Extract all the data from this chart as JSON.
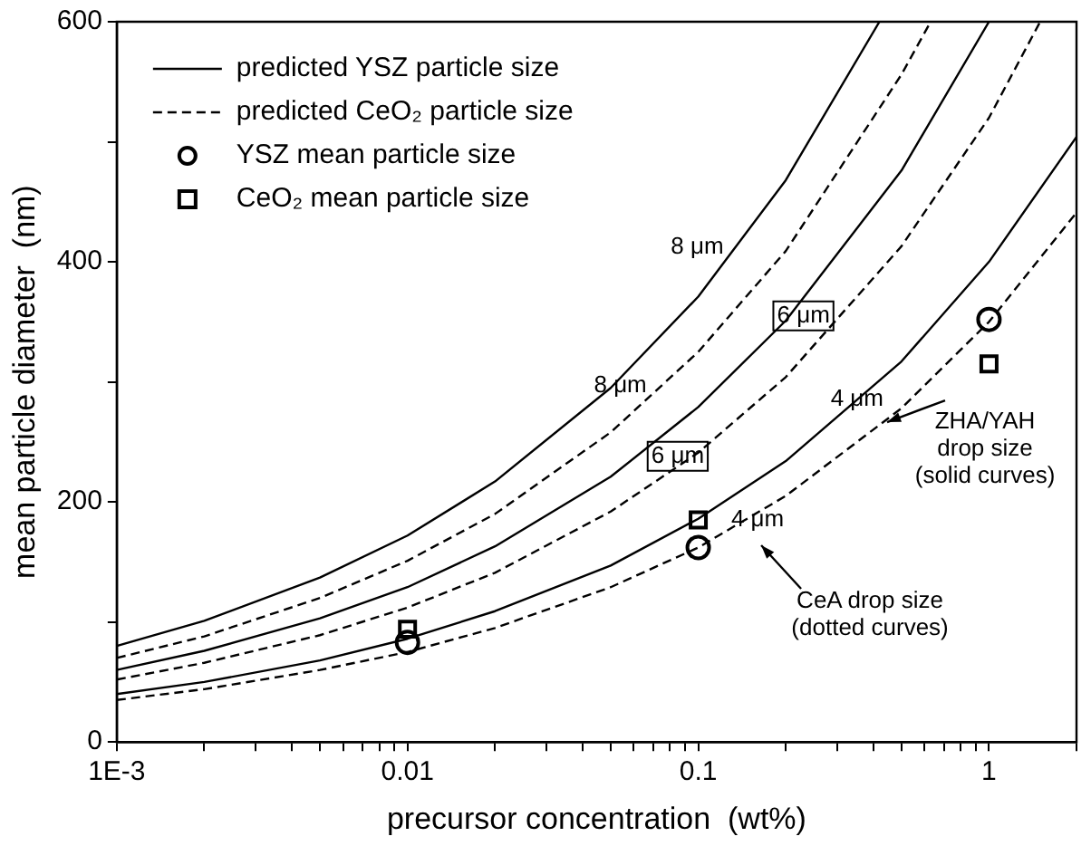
{
  "chart_data": {
    "type": "line",
    "xlabel": "precursor concentration  (wt%)",
    "ylabel": "mean particle diameter  (nm)",
    "log": "x",
    "xlim": [
      0.001,
      2
    ],
    "ylim": [
      0,
      600
    ],
    "xticks": [
      {
        "value": 0.001,
        "label": "1E-3"
      },
      {
        "value": 0.002,
        "label": null
      },
      {
        "value": 0.003,
        "label": null
      },
      {
        "value": 0.004,
        "label": null
      },
      {
        "value": 0.005,
        "label": null
      },
      {
        "value": 0.006,
        "label": null
      },
      {
        "value": 0.007,
        "label": null
      },
      {
        "value": 0.008,
        "label": null
      },
      {
        "value": 0.009,
        "label": null
      },
      0.01,
      {
        "value": 0.02,
        "label": null
      },
      {
        "value": 0.03,
        "label": null
      },
      {
        "value": 0.04,
        "label": null
      },
      {
        "value": 0.05,
        "label": null
      },
      {
        "value": 0.06,
        "label": null
      },
      {
        "value": 0.07,
        "label": null
      },
      {
        "value": 0.08,
        "label": null
      },
      {
        "value": 0.09,
        "label": null
      },
      0.1,
      {
        "value": 0.2,
        "label": null
      },
      {
        "value": 0.3,
        "label": null
      },
      {
        "value": 0.4,
        "label": null
      },
      {
        "value": 0.5,
        "label": null
      },
      {
        "value": 0.6,
        "label": null
      },
      {
        "value": 0.7,
        "label": null
      },
      {
        "value": 0.8,
        "label": null
      },
      {
        "value": 0.9,
        "label": null
      },
      1,
      {
        "value": 2,
        "label": null
      }
    ],
    "yticks": [
      0,
      {
        "value": 100,
        "label": null
      },
      200,
      {
        "value": 300,
        "label": null
      },
      400,
      {
        "value": 500,
        "label": null
      },
      600
    ],
    "grid": false,
    "legend": "top left",
    "series": [
      {
        "name": "predicted YSZ particle size",
        "line_style": "solid",
        "marker": "none",
        "color": "#000000",
        "x": [
          0.001,
          0.002,
          0.005,
          0.01,
          0.02,
          0.05,
          0.1,
          0.2,
          0.42
        ],
        "values": [
          80,
          101,
          137,
          172,
          217,
          295,
          371,
          468,
          600
        ]
      },
      {
        "name": "predicted CeO₂ particle size",
        "line_style": "dashed",
        "marker": "none",
        "color": "#000000",
        "x": [
          0.001,
          0.002,
          0.005,
          0.01,
          0.02,
          0.05,
          0.1,
          0.2,
          0.5,
          0.63
        ],
        "values": [
          70,
          88,
          120,
          151,
          190,
          258,
          325,
          409,
          556,
          600
        ]
      },
      {
        "line_style": "solid",
        "marker": "none",
        "color": "#000000",
        "x": [
          0.001,
          0.002,
          0.005,
          0.01,
          0.02,
          0.05,
          0.1,
          0.2,
          0.5,
          1
        ],
        "values": [
          60,
          76,
          103,
          129,
          163,
          221,
          279,
          351,
          476,
          600
        ]
      },
      {
        "line_style": "dashed",
        "marker": "none",
        "color": "#000000",
        "x": [
          0.001,
          0.002,
          0.005,
          0.01,
          0.02,
          0.05,
          0.1,
          0.2,
          0.5,
          1,
          1.5
        ],
        "values": [
          52,
          66,
          89,
          112,
          141,
          192,
          241,
          304,
          413,
          520,
          600
        ]
      },
      {
        "line_style": "solid",
        "marker": "none",
        "color": "#000000",
        "x": [
          0.001,
          0.002,
          0.005,
          0.01,
          0.02,
          0.05,
          0.1,
          0.2,
          0.5,
          1,
          2
        ],
        "values": [
          40,
          50,
          68,
          86,
          109,
          147,
          186,
          234,
          317,
          400,
          504
        ]
      },
      {
        "line_style": "dashed",
        "marker": "none",
        "color": "#000000",
        "x": [
          0.001,
          0.002,
          0.005,
          0.01,
          0.02,
          0.05,
          0.1,
          0.2,
          0.5,
          1,
          2
        ],
        "values": [
          35,
          44,
          60,
          75,
          95,
          129,
          162,
          205,
          278,
          350,
          441
        ]
      },
      {
        "name": "YSZ mean particle size",
        "type": "scatter",
        "marker": "circle",
        "color": "#000000",
        "x": [
          0.01,
          0.1,
          1
        ],
        "values": [
          83,
          162,
          352
        ]
      },
      {
        "name": "CeO₂ mean particle size",
        "type": "scatter",
        "marker": "square",
        "color": "#000000",
        "x": [
          0.01,
          0.1,
          1
        ],
        "values": [
          94,
          185,
          315
        ]
      }
    ],
    "annotations": [
      {
        "text": "8 μm",
        "x": 0.14,
        "y": 415
      },
      {
        "text": "8 μm",
        "x": 0.074,
        "y": 294
      },
      {
        "text": "6 μm",
        "x": 0.23,
        "y": 355
      },
      {
        "text": "6 μm",
        "x": 0.085,
        "y": 238
      },
      {
        "text": "4 μm",
        "x": 0.43,
        "y": 272
      },
      {
        "text": "4 μm",
        "x": 0.16,
        "y": 185
      },
      {
        "text": "ZHA/YAH\ndrop size\n(solid curves)",
        "x": 0.44,
        "y": 268
      },
      "CeA drop size\n(dotted curves)"
    ]
  }
}
